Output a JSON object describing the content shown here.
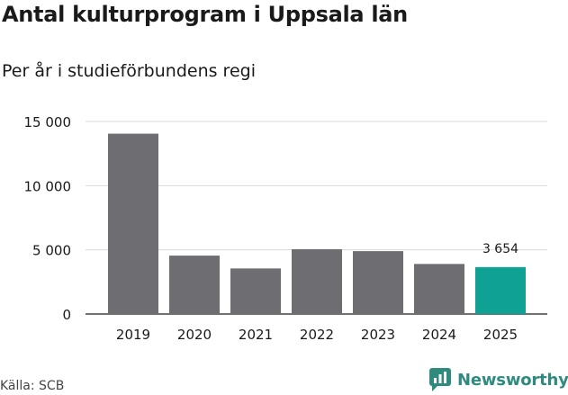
{
  "title": "Antal kulturprogram i Uppsala län",
  "subtitle": "Per år i studieförbundens regi",
  "source": "Källa: SCB",
  "brand": "Newsworthy",
  "colors": {
    "bar": "#6e6d72",
    "highlight": "#0fa294",
    "grid": "#d9d9d9",
    "brand": "#2e8b7e"
  },
  "chart_data": {
    "type": "bar",
    "title": "Antal kulturprogram i Uppsala län",
    "subtitle": "Per år i studieförbundens regi",
    "categories": [
      "2019",
      "2020",
      "2021",
      "2022",
      "2023",
      "2024",
      "2025"
    ],
    "values": [
      14050,
      4550,
      3550,
      5050,
      4900,
      3900,
      3654
    ],
    "highlight_index": 6,
    "data_labels": [
      {
        "index": 6,
        "text": "3 654"
      }
    ],
    "ylim": [
      0,
      15000
    ],
    "yticks": [
      0,
      5000,
      10000,
      15000
    ],
    "ytick_labels": [
      "0",
      "5 000",
      "10 000",
      "15 000"
    ],
    "xlabel": "",
    "ylabel": "",
    "grid": true
  }
}
